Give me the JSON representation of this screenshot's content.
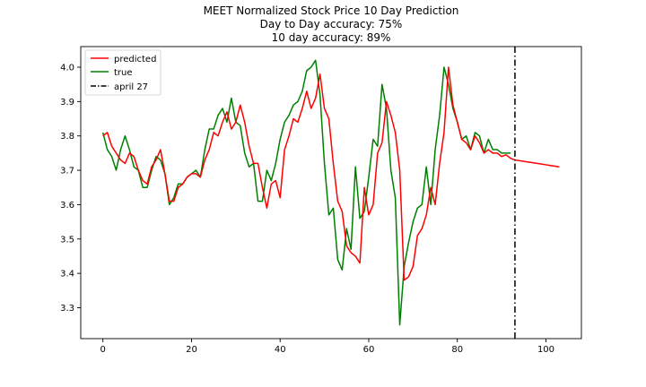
{
  "chart_data": {
    "type": "line",
    "title_lines": [
      "MEET Normalized Stock Price 10 Day Prediction",
      "Day to Day accuracy: 75%",
      "10 day accuracy: 89%"
    ],
    "xlim": [
      -5,
      108
    ],
    "ylim": [
      3.21,
      4.06
    ],
    "x_ticks": [
      0,
      20,
      40,
      60,
      80,
      100
    ],
    "y_ticks": [
      3.3,
      3.4,
      3.5,
      3.6,
      3.7,
      3.8,
      3.9,
      4.0
    ],
    "grid": false,
    "legend_position": "top-left",
    "legend": [
      {
        "label": "predicted",
        "color": "#ff0000",
        "style": "solid"
      },
      {
        "label": "true",
        "color": "#008000",
        "style": "solid"
      },
      {
        "label": "april 27",
        "color": "#000000",
        "style": "dashdot"
      }
    ],
    "vline": {
      "label": "april 27",
      "x": 93,
      "color": "#000000"
    },
    "series": [
      {
        "name": "predicted",
        "color": "#ff0000",
        "x": [
          0,
          1,
          2,
          3,
          4,
          5,
          6,
          7,
          8,
          9,
          10,
          11,
          12,
          13,
          14,
          15,
          16,
          17,
          18,
          19,
          20,
          21,
          22,
          23,
          24,
          25,
          26,
          27,
          28,
          29,
          30,
          31,
          32,
          33,
          34,
          35,
          36,
          37,
          38,
          39,
          40,
          41,
          42,
          43,
          44,
          45,
          46,
          47,
          48,
          49,
          50,
          51,
          52,
          53,
          54,
          55,
          56,
          57,
          58,
          59,
          60,
          61,
          62,
          63,
          64,
          65,
          66,
          67,
          68,
          69,
          70,
          71,
          72,
          73,
          74,
          75,
          76,
          77,
          78,
          79,
          80,
          81,
          82,
          83,
          84,
          85,
          86,
          87,
          88,
          89,
          90,
          91,
          92,
          93,
          94,
          95,
          96,
          97,
          98,
          99,
          100,
          101,
          102,
          103
        ],
        "values": [
          3.8,
          3.81,
          3.77,
          3.75,
          3.73,
          3.72,
          3.75,
          3.74,
          3.7,
          3.67,
          3.66,
          3.71,
          3.73,
          3.76,
          3.69,
          3.61,
          3.61,
          3.65,
          3.66,
          3.68,
          3.69,
          3.69,
          3.68,
          3.73,
          3.76,
          3.81,
          3.8,
          3.84,
          3.87,
          3.82,
          3.84,
          3.89,
          3.84,
          3.77,
          3.72,
          3.72,
          3.65,
          3.59,
          3.66,
          3.67,
          3.62,
          3.76,
          3.8,
          3.85,
          3.84,
          3.88,
          3.93,
          3.88,
          3.91,
          3.98,
          3.88,
          3.85,
          3.72,
          3.61,
          3.58,
          3.48,
          3.46,
          3.45,
          3.43,
          3.65,
          3.57,
          3.6,
          3.75,
          3.78,
          3.9,
          3.86,
          3.81,
          3.7,
          3.38,
          3.39,
          3.42,
          3.51,
          3.53,
          3.57,
          3.65,
          3.6,
          3.72,
          3.81,
          4.0,
          3.89,
          3.84,
          3.79,
          3.78,
          3.76,
          3.8,
          3.78,
          3.75,
          3.76,
          3.75,
          3.75,
          3.74,
          3.745,
          3.735,
          3.73,
          3.728,
          3.726,
          3.724,
          3.722,
          3.72,
          3.718,
          3.716,
          3.714,
          3.712,
          3.71
        ]
      },
      {
        "name": "true",
        "color": "#008000",
        "x": [
          0,
          1,
          2,
          3,
          4,
          5,
          6,
          7,
          8,
          9,
          10,
          11,
          12,
          13,
          14,
          15,
          16,
          17,
          18,
          19,
          20,
          21,
          22,
          23,
          24,
          25,
          26,
          27,
          28,
          29,
          30,
          31,
          32,
          33,
          34,
          35,
          36,
          37,
          38,
          39,
          40,
          41,
          42,
          43,
          44,
          45,
          46,
          47,
          48,
          49,
          50,
          51,
          52,
          53,
          54,
          55,
          56,
          57,
          58,
          59,
          60,
          61,
          62,
          63,
          64,
          65,
          66,
          67,
          68,
          69,
          70,
          71,
          72,
          73,
          74,
          75,
          76,
          77,
          78,
          79,
          80,
          81,
          82,
          83,
          84,
          85,
          86,
          87,
          88,
          89,
          90,
          91,
          92
        ],
        "values": [
          3.81,
          3.76,
          3.74,
          3.7,
          3.76,
          3.8,
          3.76,
          3.71,
          3.7,
          3.65,
          3.65,
          3.7,
          3.74,
          3.73,
          3.69,
          3.6,
          3.62,
          3.66,
          3.66,
          3.68,
          3.69,
          3.7,
          3.68,
          3.76,
          3.82,
          3.82,
          3.86,
          3.88,
          3.84,
          3.91,
          3.84,
          3.83,
          3.75,
          3.71,
          3.72,
          3.61,
          3.61,
          3.7,
          3.67,
          3.72,
          3.79,
          3.84,
          3.86,
          3.89,
          3.9,
          3.93,
          3.99,
          4.0,
          4.02,
          3.92,
          3.72,
          3.57,
          3.59,
          3.44,
          3.41,
          3.53,
          3.47,
          3.71,
          3.56,
          3.58,
          3.68,
          3.79,
          3.77,
          3.95,
          3.88,
          3.7,
          3.62,
          3.25,
          3.42,
          3.49,
          3.55,
          3.59,
          3.6,
          3.71,
          3.6,
          3.76,
          3.86,
          4.0,
          3.95,
          3.88,
          3.84,
          3.79,
          3.8,
          3.76,
          3.81,
          3.8,
          3.75,
          3.79,
          3.76,
          3.76,
          3.75,
          3.75,
          3.75
        ]
      }
    ]
  }
}
